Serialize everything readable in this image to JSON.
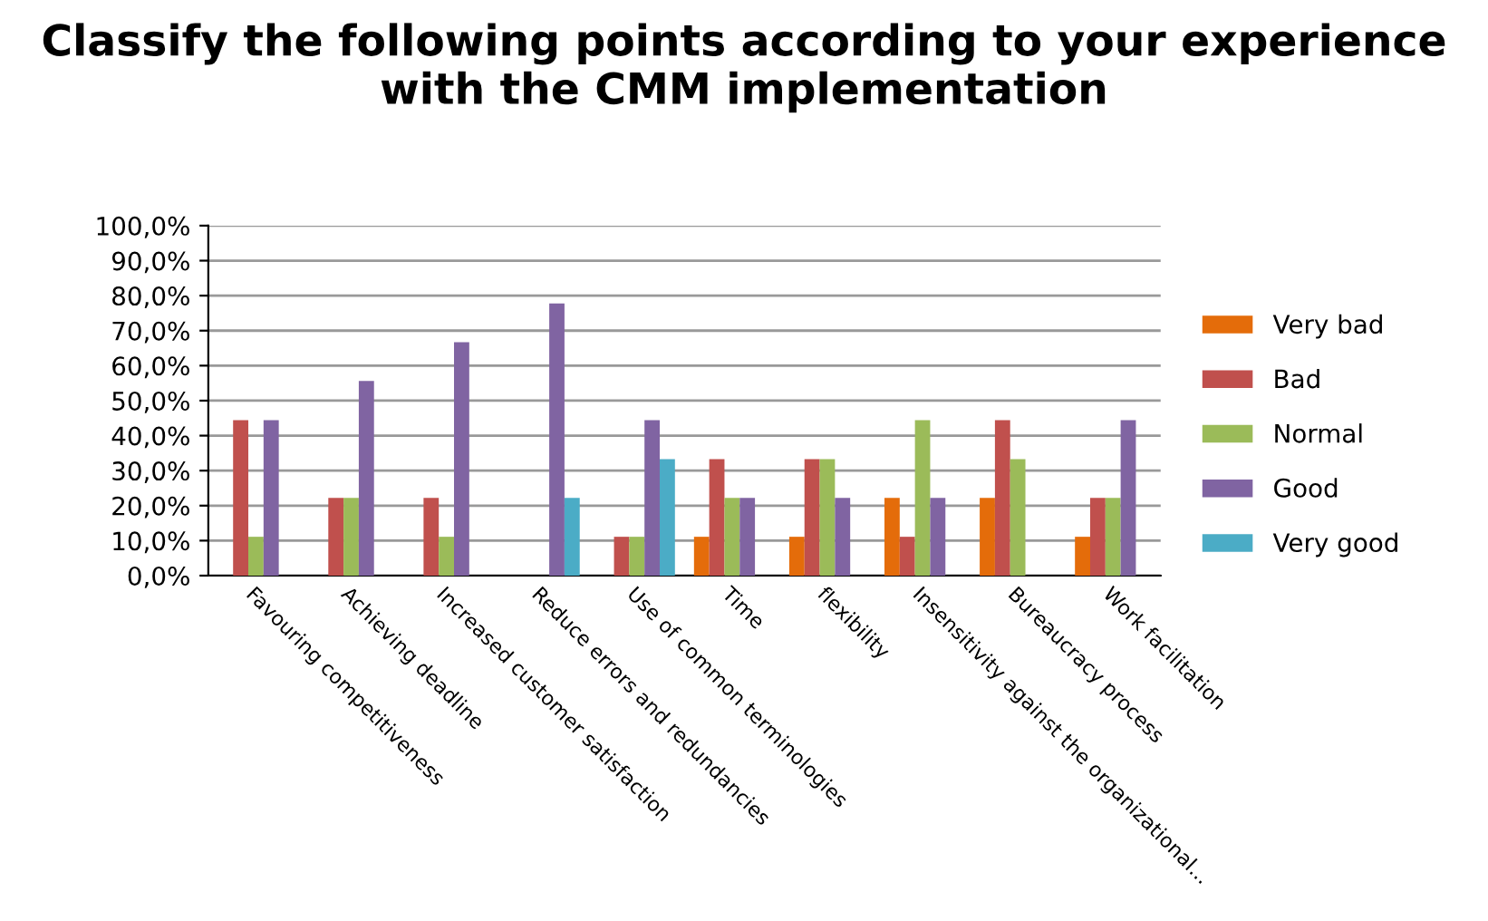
{
  "chart_data": {
    "type": "bar",
    "title": "Classify the following points according to your experience with the CMM implementation",
    "categories": [
      "Favouring competitiveness",
      "Achieving deadline",
      "Increased customer satisfaction",
      "Reduce errors and redundancies",
      "Use of common terminologies",
      "Time",
      "flexibility",
      "Insensitivity against the organizational...",
      "Bureaucracy process",
      "Work facilitation"
    ],
    "series": [
      {
        "name": "Very bad",
        "color": "#e46c0a",
        "values": [
          0,
          0,
          0,
          0,
          0,
          11.1,
          11.1,
          22.2,
          22.2,
          11.1
        ]
      },
      {
        "name": "Bad",
        "color": "#c0504d",
        "values": [
          44.4,
          22.2,
          22.2,
          0,
          11.1,
          33.3,
          33.3,
          11.1,
          44.4,
          22.2
        ]
      },
      {
        "name": "Normal",
        "color": "#9bbb59",
        "values": [
          11.1,
          22.2,
          11.1,
          0,
          11.1,
          22.2,
          33.3,
          44.4,
          33.3,
          22.2
        ]
      },
      {
        "name": "Good",
        "color": "#8064a2",
        "values": [
          44.4,
          55.6,
          66.7,
          77.8,
          44.4,
          22.2,
          22.2,
          22.2,
          0,
          44.4
        ]
      },
      {
        "name": "Very good",
        "color": "#4bacc6",
        "values": [
          0,
          0,
          0,
          22.2,
          33.3,
          0,
          0,
          0,
          0,
          0
        ]
      }
    ],
    "ylim": [
      0,
      100
    ],
    "yticks": [
      {
        "value": 0,
        "label": "0,0%"
      },
      {
        "value": 10,
        "label": "10,0%"
      },
      {
        "value": 20,
        "label": "20,0%"
      },
      {
        "value": 30,
        "label": "30,0%"
      },
      {
        "value": 40,
        "label": "40,0%"
      },
      {
        "value": 50,
        "label": "50,0%"
      },
      {
        "value": 60,
        "label": "60,0%"
      },
      {
        "value": 70,
        "label": "70,0%"
      },
      {
        "value": 80,
        "label": "80,0%"
      },
      {
        "value": 90,
        "label": "90,0%"
      },
      {
        "value": 100,
        "label": "100,0%"
      }
    ],
    "grid": "y",
    "legend": "right"
  }
}
